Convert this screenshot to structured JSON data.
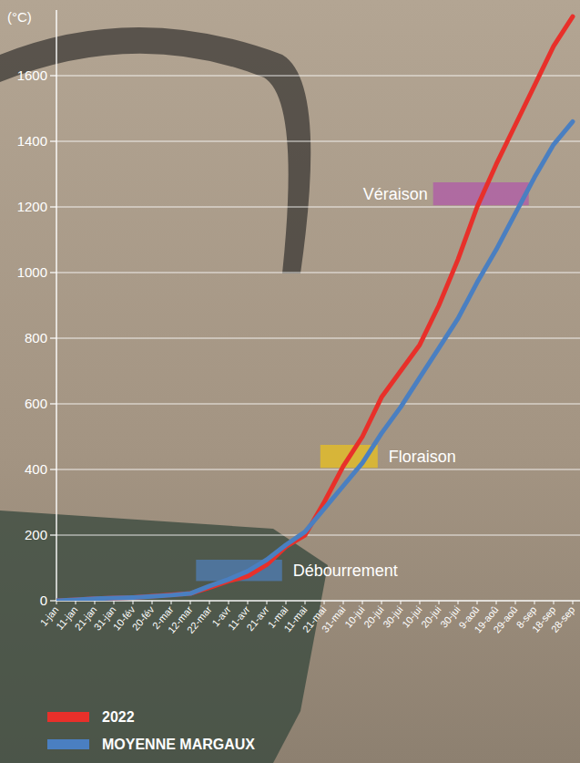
{
  "chart_data": {
    "type": "line",
    "y_label": "(°C)",
    "categories": [
      "1-jan",
      "11-jan",
      "21-jan",
      "31-jan",
      "10-fév",
      "20-fév",
      "2-mar",
      "12-mar",
      "22-mar",
      "1-avr",
      "11-avr",
      "21-avr",
      "1-mai",
      "11-mai",
      "21-mai",
      "31-mai",
      "10-jui",
      "20-jui",
      "30-jui",
      "10-jui",
      "20-jui",
      "30-jui",
      "9-aoû",
      "19-aoû",
      "29-aoû",
      "8-sep",
      "18-sep",
      "28-sep"
    ],
    "series": [
      {
        "name": "2022",
        "color": "#e8302a",
        "values": [
          0,
          3,
          6,
          8,
          10,
          14,
          18,
          22,
          40,
          60,
          75,
          110,
          165,
          200,
          300,
          410,
          500,
          620,
          700,
          780,
          900,
          1040,
          1200,
          1330,
          1450,
          1570,
          1690,
          1780
        ]
      },
      {
        "name": "MOYENNE MARGAUX",
        "color": "#4a7fc1",
        "values": [
          0,
          3,
          6,
          8,
          10,
          13,
          17,
          22,
          45,
          65,
          90,
          125,
          170,
          210,
          280,
          350,
          420,
          510,
          590,
          680,
          770,
          860,
          970,
          1070,
          1180,
          1290,
          1390,
          1460
        ]
      }
    ],
    "phases": [
      {
        "label": "Débourrement",
        "color": "#4f7db5",
        "x_range": [
          7.3,
          11.8
        ],
        "y_range": [
          60,
          125
        ]
      },
      {
        "label": "Floraison",
        "color": "#e8c020",
        "x_range": [
          13.8,
          16.8
        ],
        "y_range": [
          405,
          475
        ]
      },
      {
        "label": "Véraison",
        "color": "#b05aa8",
        "x_range": [
          19.7,
          24.7
        ],
        "y_range": [
          1205,
          1275
        ]
      }
    ],
    "ylim": [
      0,
      1800
    ],
    "yticks": [
      0,
      200,
      400,
      600,
      800,
      1000,
      1200,
      1400,
      1600
    ],
    "grid": true,
    "legend": "bottom-left"
  }
}
